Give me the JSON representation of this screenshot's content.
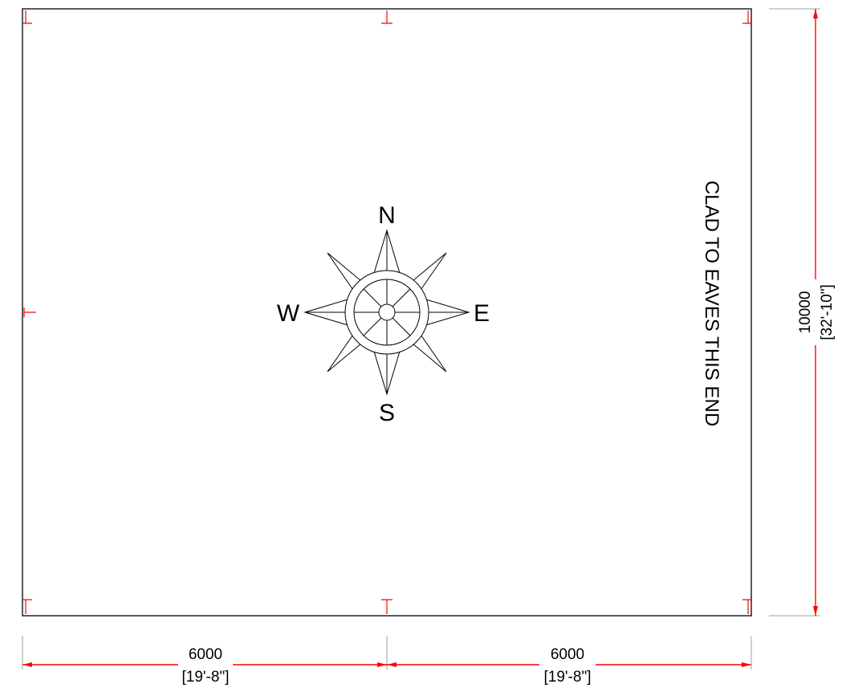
{
  "plan": {
    "note": "CLAD TO EAVES THIS END"
  },
  "compass": {
    "north": "N",
    "south": "S",
    "east": "E",
    "west": "W"
  },
  "dimensions": {
    "bottom_left": {
      "metric": "6000",
      "imperial": "[19'-8\"]"
    },
    "bottom_right": {
      "metric": "6000",
      "imperial": "[19'-8\"]"
    },
    "right": {
      "metric": "10000",
      "imperial": "[32'-10\"]"
    }
  },
  "colors": {
    "outline": "#000000",
    "dimension": "#ff0000",
    "extension": "#a0a0a0"
  }
}
